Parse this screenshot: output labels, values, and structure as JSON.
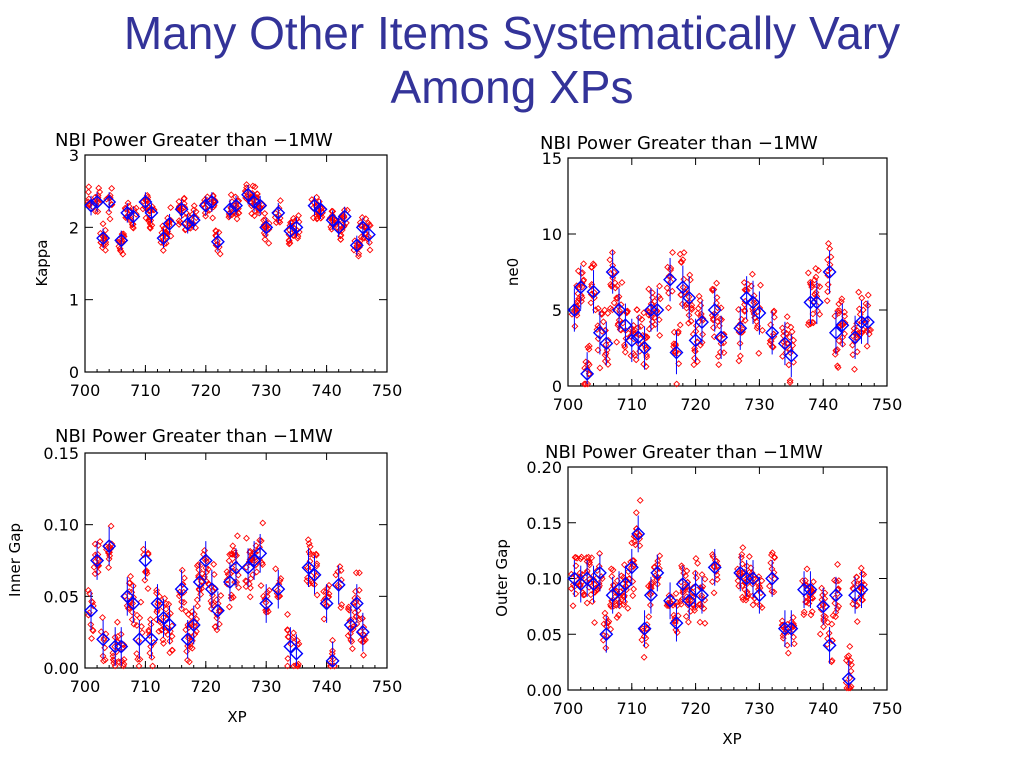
{
  "slide": {
    "title_line1": "Many Other Items Systematically Vary",
    "title_line2": "Among XPs"
  },
  "colors": {
    "title": "#333399",
    "raw_points": "#ff0000",
    "mean_markers": "#0000ff"
  },
  "chart_data": [
    {
      "id": "kappa",
      "type": "scatter",
      "title": "NBI Power Greater than −1MW",
      "xlabel": "",
      "ylabel": "Kappa",
      "xlim": [
        700,
        750
      ],
      "ylim": [
        0,
        3
      ],
      "xticks": [
        "700",
        "710",
        "720",
        "730",
        "740",
        "750"
      ],
      "yticks": [
        "0",
        "1",
        "2",
        "3"
      ],
      "spread": 0.18,
      "points": [
        [
          701,
          2.3
        ],
        [
          702,
          2.35
        ],
        [
          703,
          1.85
        ],
        [
          704,
          2.35
        ],
        [
          706,
          1.82
        ],
        [
          707,
          2.2
        ],
        [
          708,
          2.15
        ],
        [
          710,
          2.35
        ],
        [
          711,
          2.2
        ],
        [
          713,
          1.85
        ],
        [
          714,
          2.05
        ],
        [
          716,
          2.25
        ],
        [
          717,
          2.05
        ],
        [
          718,
          2.1
        ],
        [
          720,
          2.3
        ],
        [
          721,
          2.35
        ],
        [
          722,
          1.8
        ],
        [
          724,
          2.25
        ],
        [
          725,
          2.3
        ],
        [
          727,
          2.45
        ],
        [
          728,
          2.35
        ],
        [
          729,
          2.3
        ],
        [
          730,
          2.0
        ],
        [
          732,
          2.2
        ],
        [
          734,
          1.95
        ],
        [
          735,
          2.0
        ],
        [
          738,
          2.3
        ],
        [
          739,
          2.25
        ],
        [
          741,
          2.1
        ],
        [
          742,
          2.0
        ],
        [
          743,
          2.15
        ],
        [
          745,
          1.75
        ],
        [
          746,
          2.0
        ],
        [
          747,
          1.9
        ]
      ]
    },
    {
      "id": "ne0",
      "type": "scatter",
      "title": "NBI Power Greater than −1MW",
      "xlabel": "",
      "ylabel": "ne0",
      "xlim": [
        700,
        750
      ],
      "ylim": [
        0,
        15
      ],
      "xticks": [
        "700",
        "710",
        "720",
        "730",
        "740",
        "750"
      ],
      "yticks": [
        "0",
        "5",
        "10",
        "15"
      ],
      "spread": 1.9,
      "points": [
        [
          701,
          5.0
        ],
        [
          702,
          6.5
        ],
        [
          703,
          0.8
        ],
        [
          704,
          6.2
        ],
        [
          705,
          3.5
        ],
        [
          706,
          2.8
        ],
        [
          707,
          7.5
        ],
        [
          708,
          5.0
        ],
        [
          709,
          4.0
        ],
        [
          710,
          3.0
        ],
        [
          711,
          3.2
        ],
        [
          712,
          2.5
        ],
        [
          713,
          5.0
        ],
        [
          714,
          5.0
        ],
        [
          716,
          7.0
        ],
        [
          717,
          2.2
        ],
        [
          718,
          6.5
        ],
        [
          719,
          5.8
        ],
        [
          720,
          3.0
        ],
        [
          721,
          4.2
        ],
        [
          723,
          5.0
        ],
        [
          724,
          3.2
        ],
        [
          727,
          3.8
        ],
        [
          728,
          5.8
        ],
        [
          729,
          5.5
        ],
        [
          730,
          4.8
        ],
        [
          732,
          3.5
        ],
        [
          734,
          2.8
        ],
        [
          735,
          2.0
        ],
        [
          738,
          5.5
        ],
        [
          739,
          5.5
        ],
        [
          741,
          7.5
        ],
        [
          742,
          3.5
        ],
        [
          743,
          4.0
        ],
        [
          745,
          3.2
        ],
        [
          746,
          4.2
        ],
        [
          747,
          4.2
        ]
      ]
    },
    {
      "id": "inner_gap",
      "type": "scatter",
      "title": "NBI Power Greater than −1MW",
      "xlabel": "XP",
      "ylabel": "Inner Gap",
      "xlim": [
        700,
        750
      ],
      "ylim": [
        0,
        0.15
      ],
      "xticks": [
        "700",
        "710",
        "720",
        "730",
        "740",
        "750"
      ],
      "yticks": [
        "0.00",
        "0.05",
        "0.10",
        "0.15"
      ],
      "spread": 0.018,
      "points": [
        [
          701,
          0.04
        ],
        [
          702,
          0.075
        ],
        [
          703,
          0.02
        ],
        [
          704,
          0.085
        ],
        [
          705,
          0.015
        ],
        [
          706,
          0.015
        ],
        [
          707,
          0.05
        ],
        [
          708,
          0.045
        ],
        [
          709,
          0.02
        ],
        [
          710,
          0.075
        ],
        [
          711,
          0.02
        ],
        [
          712,
          0.045
        ],
        [
          713,
          0.035
        ],
        [
          714,
          0.03
        ],
        [
          716,
          0.055
        ],
        [
          717,
          0.02
        ],
        [
          718,
          0.03
        ],
        [
          719,
          0.06
        ],
        [
          720,
          0.075
        ],
        [
          721,
          0.055
        ],
        [
          722,
          0.04
        ],
        [
          724,
          0.06
        ],
        [
          725,
          0.07
        ],
        [
          727,
          0.07
        ],
        [
          728,
          0.075
        ],
        [
          729,
          0.08
        ],
        [
          730,
          0.045
        ],
        [
          732,
          0.055
        ],
        [
          734,
          0.015
        ],
        [
          735,
          0.01
        ],
        [
          737,
          0.07
        ],
        [
          738,
          0.065
        ],
        [
          740,
          0.045
        ],
        [
          741,
          0.005
        ],
        [
          742,
          0.058
        ],
        [
          744,
          0.03
        ],
        [
          745,
          0.045
        ],
        [
          746,
          0.025
        ]
      ]
    },
    {
      "id": "outer_gap",
      "type": "scatter",
      "title": "NBI Power Greater than −1MW",
      "xlabel": "XP",
      "ylabel": "Outer Gap",
      "xlim": [
        700,
        750
      ],
      "ylim": [
        0,
        0.2
      ],
      "xticks": [
        "700",
        "710",
        "720",
        "730",
        "740",
        "750"
      ],
      "yticks": [
        "0.00",
        "0.05",
        "0.10",
        "0.15",
        "0.20"
      ],
      "spread": 0.022,
      "points": [
        [
          701,
          0.1
        ],
        [
          702,
          0.095
        ],
        [
          703,
          0.1
        ],
        [
          704,
          0.095
        ],
        [
          705,
          0.105
        ],
        [
          706,
          0.05
        ],
        [
          707,
          0.085
        ],
        [
          708,
          0.09
        ],
        [
          709,
          0.095
        ],
        [
          710,
          0.11
        ],
        [
          711,
          0.14
        ],
        [
          712,
          0.055
        ],
        [
          713,
          0.085
        ],
        [
          714,
          0.105
        ],
        [
          716,
          0.08
        ],
        [
          717,
          0.06
        ],
        [
          718,
          0.095
        ],
        [
          719,
          0.08
        ],
        [
          720,
          0.09
        ],
        [
          721,
          0.085
        ],
        [
          723,
          0.11
        ],
        [
          727,
          0.105
        ],
        [
          728,
          0.1
        ],
        [
          729,
          0.1
        ],
        [
          730,
          0.085
        ],
        [
          732,
          0.1
        ],
        [
          734,
          0.055
        ],
        [
          735,
          0.055
        ],
        [
          737,
          0.09
        ],
        [
          738,
          0.09
        ],
        [
          740,
          0.075
        ],
        [
          741,
          0.04
        ],
        [
          742,
          0.085
        ],
        [
          744,
          0.01
        ],
        [
          745,
          0.085
        ],
        [
          746,
          0.09
        ]
      ]
    }
  ]
}
